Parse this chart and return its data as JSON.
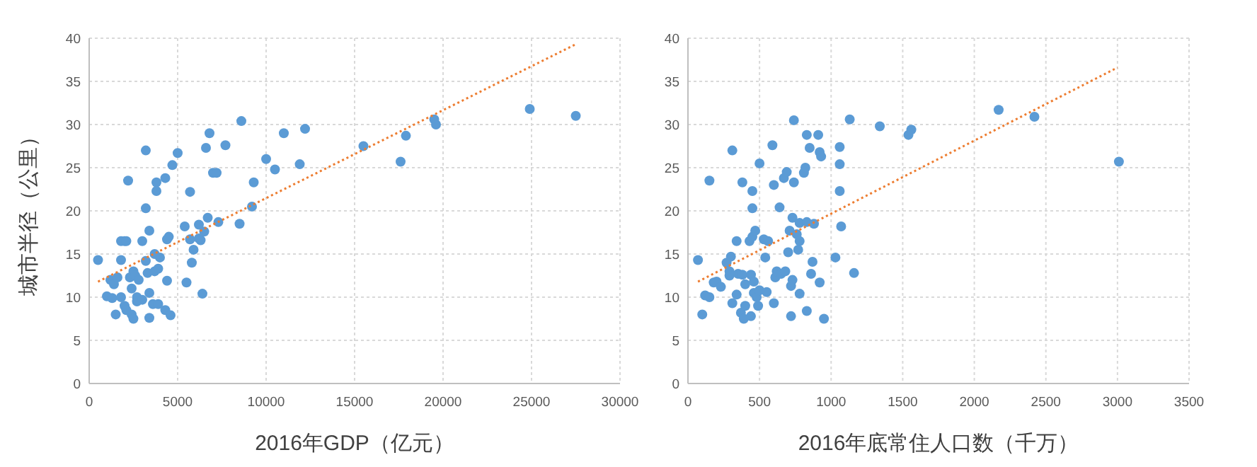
{
  "chart_data": [
    {
      "type": "scatter",
      "xlabel": "2016年GDP（亿元）",
      "ylabel": "城市半径（公里）",
      "xlim": [
        0,
        30000
      ],
      "ylim": [
        0,
        40
      ],
      "xticks": [
        0,
        5000,
        10000,
        15000,
        20000,
        25000,
        30000
      ],
      "yticks": [
        0,
        5,
        10,
        15,
        20,
        25,
        30,
        35,
        40
      ],
      "grid": true,
      "series": [
        {
          "marker": "circle",
          "color": "#5b9bd5",
          "x": [
            500,
            1000,
            1300,
            1200,
            1400,
            1500,
            1600,
            1800,
            1800,
            1800,
            2000,
            2100,
            2000,
            2100,
            2200,
            2300,
            2400,
            2500,
            2400,
            2500,
            2600,
            2700,
            2700,
            2800,
            3000,
            3000,
            3200,
            3200,
            3200,
            3300,
            3400,
            3400,
            3400,
            3600,
            3700,
            3700,
            3800,
            3800,
            3900,
            3900,
            4000,
            4300,
            4300,
            4400,
            4400,
            4500,
            4600,
            4700,
            5000,
            5400,
            5500,
            5700,
            5700,
            5800,
            5900,
            6200,
            6200,
            6300,
            6400,
            6500,
            6600,
            6700,
            6800,
            7000,
            7200,
            7300,
            7700,
            8500,
            8600,
            9200,
            9300,
            10000,
            10500,
            11000,
            11900,
            12200,
            15500,
            17600,
            17900,
            19500,
            19600,
            24900,
            27500
          ],
          "values": [
            14.3,
            10.1,
            9.9,
            12,
            11.5,
            8,
            12.3,
            10,
            14.3,
            16.5,
            16.5,
            16.5,
            9,
            8.5,
            23.5,
            12.3,
            8,
            7.5,
            11,
            13,
            12.5,
            10,
            9.5,
            12,
            16.5,
            9.7,
            27,
            20.3,
            14.2,
            12.8,
            10.5,
            7.6,
            17.7,
            9.2,
            15,
            13,
            23.3,
            22.3,
            13.3,
            9.2,
            14.6,
            23.8,
            8.5,
            11.9,
            16.7,
            17,
            7.9,
            25.3,
            26.7,
            18.2,
            11.7,
            22.2,
            16.7,
            14,
            15.5,
            18.4,
            16.8,
            16.6,
            10.4,
            17.6,
            27.3,
            19.2,
            29,
            24.4,
            24.4,
            18.7,
            27.6,
            18.5,
            30.4,
            20.5,
            23.3,
            26,
            24.8,
            29,
            25.4,
            29.5,
            27.5,
            25.7,
            28.7,
            30.6,
            30,
            31.8,
            31
          ]
        },
        {
          "type": "line",
          "color": "#ed7d31",
          "line_style": "dotted",
          "x": [
            500,
            27500
          ],
          "values": [
            11.8,
            39.3
          ]
        }
      ]
    },
    {
      "type": "scatter",
      "xlabel": "2016年底常住人口数（千万）",
      "xlim": [
        0,
        3500
      ],
      "ylim": [
        0,
        40
      ],
      "xticks": [
        0,
        500,
        1000,
        1500,
        2000,
        2500,
        3000,
        3500
      ],
      "yticks": [
        0,
        5,
        10,
        15,
        20,
        25,
        30,
        35,
        40
      ],
      "grid": true,
      "series": [
        {
          "marker": "circle",
          "color": "#5b9bd5",
          "x": [
            70,
            100,
            120,
            150,
            150,
            180,
            200,
            230,
            270,
            290,
            300,
            290,
            310,
            310,
            340,
            340,
            350,
            370,
            380,
            380,
            390,
            400,
            400,
            430,
            440,
            440,
            450,
            450,
            450,
            460,
            460,
            470,
            480,
            490,
            500,
            500,
            530,
            540,
            550,
            560,
            590,
            600,
            600,
            610,
            620,
            640,
            650,
            670,
            680,
            690,
            700,
            710,
            720,
            720,
            730,
            730,
            740,
            740,
            760,
            770,
            780,
            780,
            780,
            810,
            820,
            830,
            830,
            830,
            850,
            860,
            870,
            880,
            910,
            920,
            920,
            930,
            950,
            1030,
            1060,
            1060,
            1060,
            1070,
            1130,
            1160,
            1340,
            1540,
            1560,
            2170,
            2420,
            3010
          ],
          "values": [
            14.3,
            8,
            10.2,
            10,
            23.5,
            11.7,
            11.8,
            11.2,
            14,
            13,
            14.7,
            12.5,
            9.3,
            27,
            16.5,
            10.3,
            12.7,
            8.2,
            12.6,
            23.3,
            7.5,
            11.5,
            9,
            16.5,
            12.6,
            7.8,
            22.3,
            20.3,
            17,
            11.8,
            10.5,
            17.7,
            10,
            9,
            25.5,
            10.8,
            16.7,
            14.6,
            10.6,
            16.5,
            27.6,
            23,
            9.3,
            12.3,
            13,
            20.4,
            12.7,
            23.8,
            13,
            24.5,
            15.2,
            17.7,
            11.3,
            7.8,
            19.2,
            12,
            30.5,
            23.3,
            17.3,
            15.5,
            18.6,
            16.5,
            10.4,
            24.4,
            25,
            18.7,
            8.4,
            28.8,
            27.3,
            12.7,
            14.1,
            18.5,
            28.8,
            26.8,
            11.7,
            26.3,
            7.5,
            14.6,
            27.4,
            25.4,
            22.3,
            18.2,
            30.6,
            12.8,
            29.8,
            28.8,
            29.4,
            31.7,
            30.9,
            25.7
          ]
        },
        {
          "type": "line",
          "color": "#ed7d31",
          "line_style": "dotted",
          "x": [
            70,
            3000
          ],
          "values": [
            11.8,
            36.6
          ]
        }
      ]
    }
  ]
}
